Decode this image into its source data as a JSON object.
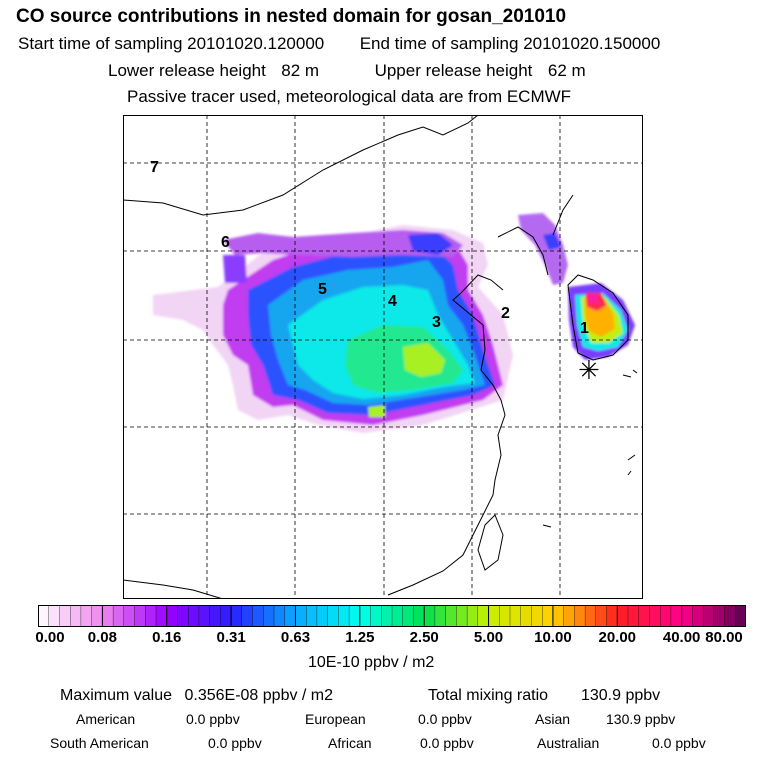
{
  "header": {
    "title": "CO  source contributions in nested domain for gosan_201010",
    "start_label": "Start time of sampling",
    "start_value": "20101020.120000",
    "end_label": "End time of sampling",
    "end_value": "20101020.150000",
    "lower_label": "Lower release height",
    "lower_value": "82 m",
    "upper_label": "Upper release height",
    "upper_value": "62 m",
    "note": "Passive tracer used, meteorological data are from ECMWF"
  },
  "map": {
    "region_labels": [
      "7",
      "6",
      "5",
      "4",
      "3",
      "2",
      "1"
    ],
    "receptor_symbol": "✳"
  },
  "colorbar": {
    "labels": [
      "0.00",
      "0.08",
      "0.16",
      "0.31",
      "0.63",
      "1.25",
      "2.50",
      "5.00",
      "10.00",
      "20.00",
      "40.00",
      "80.00"
    ],
    "units": "10E-10 ppbv / m2"
  },
  "summary": {
    "max_label": "Maximum value",
    "max_value": "0.356E-08 ppbv / m2",
    "total_label": "Total mixing ratio",
    "total_value": "130.9 ppbv",
    "contributions": [
      {
        "label": "American",
        "value": "0.0 ppbv"
      },
      {
        "label": "European",
        "value": "0.0 ppbv"
      },
      {
        "label": "Asian",
        "value": "130.9 ppbv"
      },
      {
        "label": "South American",
        "value": "0.0 ppbv"
      },
      {
        "label": "African",
        "value": "0.0 ppbv"
      },
      {
        "label": "Australian",
        "value": "0.0 ppbv"
      }
    ]
  }
}
